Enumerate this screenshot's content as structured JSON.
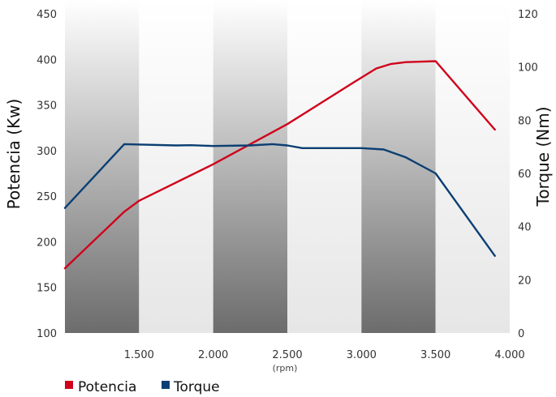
{
  "chart_data": {
    "type": "line",
    "xlabel": "(rpm)",
    "x_ticks": [
      "1.500",
      "2.000",
      "2.500",
      "3.000",
      "3.500",
      "4.000"
    ],
    "x_tick_values": [
      1500,
      2000,
      2500,
      3000,
      3500,
      4000
    ],
    "xlim": [
      1000,
      4000
    ],
    "ylabel_left": "Potencia (Kw)",
    "ylim_left": [
      100,
      450
    ],
    "y_ticks_left": [
      "100",
      "150",
      "200",
      "250",
      "300",
      "350",
      "400",
      "450"
    ],
    "ylabel_right": "Torque (Nm)",
    "ylim_right": [
      0,
      120
    ],
    "y_ticks_right": [
      "0",
      "20",
      "40",
      "60",
      "80",
      "100",
      "120"
    ],
    "grid": false,
    "background_bands": "alternating vertical gray gradient bands every 500 rpm",
    "legend_position": "bottom-left",
    "series": [
      {
        "name": "Potencia",
        "axis": "left",
        "color": "#d0021b",
        "x": [
          1000,
          1400,
          1500,
          2000,
          2500,
          2950,
          3100,
          3200,
          3300,
          3500,
          3900
        ],
        "y": [
          171,
          233,
          245,
          285,
          329,
          375,
          390,
          395,
          397,
          398,
          323
        ]
      },
      {
        "name": "Torque",
        "axis": "right",
        "color": "#0b3f73",
        "x": [
          1000,
          1400,
          1750,
          1850,
          2000,
          2250,
          2400,
          2500,
          2600,
          3000,
          3150,
          3300,
          3500,
          3900
        ],
        "y": [
          47,
          71,
          70.5,
          70.6,
          70.3,
          70.5,
          71,
          70.5,
          69.5,
          69.5,
          69,
          66,
          60,
          29
        ]
      }
    ]
  }
}
